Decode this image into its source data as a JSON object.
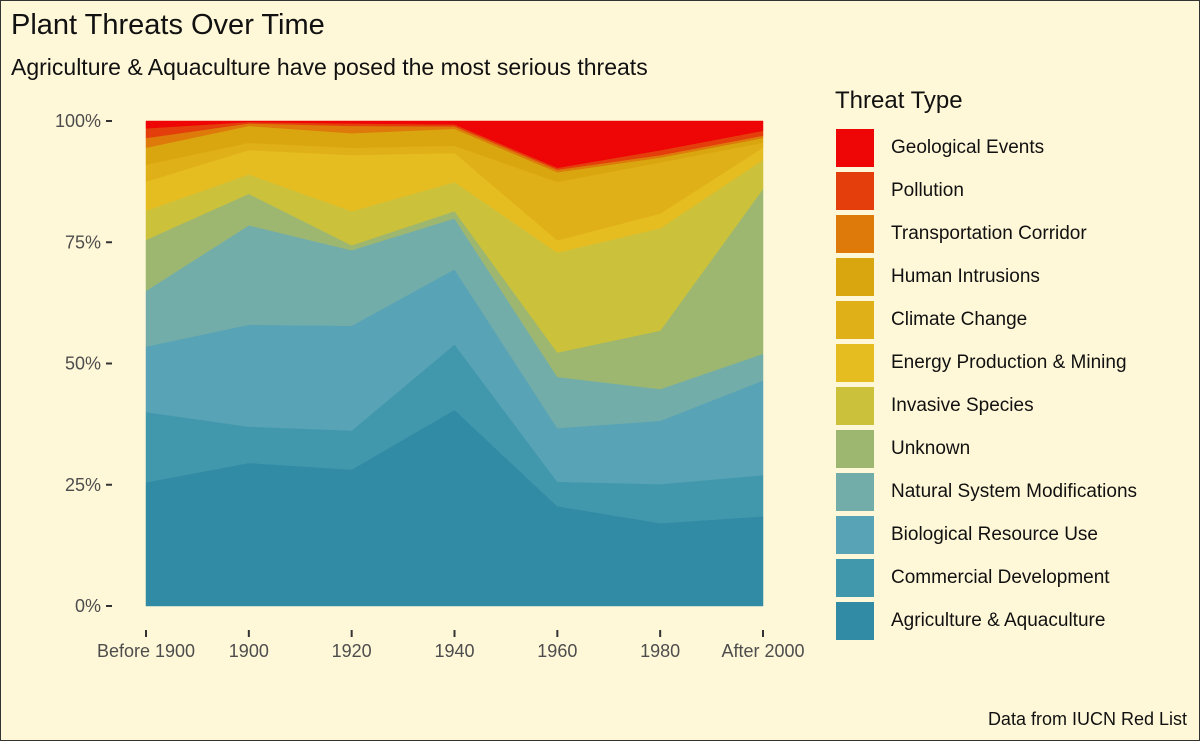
{
  "title": "Plant Threats Over Time",
  "subtitle": "Agriculture & Aquaculture have posed the most serious threats",
  "caption": "Data from IUCN Red List",
  "chart_data": {
    "type": "area",
    "stacked": "percent",
    "title": "Plant Threats Over Time",
    "subtitle": "Agriculture & Aquaculture have posed the most serious threats",
    "xlabel": "",
    "ylabel": "",
    "x": [
      "Before 1900",
      "1900",
      "1920",
      "1940",
      "1960",
      "1980",
      "After 2000"
    ],
    "ylim": [
      0,
      100
    ],
    "y_ticks": [
      "0%",
      "25%",
      "50%",
      "75%",
      "100%"
    ],
    "y_tick_values": [
      0,
      25,
      50,
      75,
      100
    ],
    "grid": false,
    "legend_title": "Threat Type",
    "legend_position": "right",
    "series": [
      {
        "name": "Agriculture & Aquaculture",
        "color": "#328ba5",
        "values": [
          25.5,
          29.5,
          28.0,
          40.5,
          20.5,
          17.0,
          18.5
        ]
      },
      {
        "name": "Commercial Development",
        "color": "#4198ad",
        "values": [
          14.5,
          7.5,
          8.0,
          13.5,
          5.0,
          8.0,
          8.5
        ]
      },
      {
        "name": "Biological Resource Use",
        "color": "#58a3b5",
        "values": [
          13.5,
          21.0,
          21.5,
          15.5,
          11.0,
          13.0,
          19.5
        ]
      },
      {
        "name": "Natural System Modifications",
        "color": "#72adaa",
        "values": [
          11.5,
          20.5,
          15.5,
          10.5,
          10.5,
          6.5,
          5.5
        ]
      },
      {
        "name": "Unknown",
        "color": "#9db770",
        "values": [
          10.5,
          6.5,
          1.0,
          1.5,
          5.0,
          12.0,
          34.0
        ]
      },
      {
        "name": "Invasive Species",
        "color": "#ccc13a",
        "values": [
          6.0,
          4.0,
          7.0,
          6.0,
          20.5,
          21.0,
          6.0
        ]
      },
      {
        "name": "Energy Production & Mining",
        "color": "#e6bd21",
        "values": [
          6.0,
          5.0,
          11.5,
          6.0,
          2.5,
          3.0,
          2.5
        ]
      },
      {
        "name": "Climate Change",
        "color": "#e0b018",
        "values": [
          3.5,
          1.5,
          1.5,
          1.5,
          12.0,
          10.5,
          1.0
        ]
      },
      {
        "name": "Human Intrusions",
        "color": "#daa610",
        "values": [
          3.5,
          3.5,
          3.0,
          3.5,
          2.0,
          1.0,
          1.0
        ]
      },
      {
        "name": "Transportation Corridor",
        "color": "#dd7a0a",
        "values": [
          2.0,
          0.5,
          1.5,
          0.5,
          0.5,
          0.5,
          0.5
        ]
      },
      {
        "name": "Pollution",
        "color": "#e33e0b",
        "values": [
          2.0,
          0.3,
          0.5,
          0.4,
          0.4,
          1.0,
          1.0
        ]
      },
      {
        "name": "Geological Events",
        "color": "#ee0505",
        "values": [
          1.5,
          0.2,
          0.5,
          0.7,
          9.6,
          6.0,
          2.0
        ]
      }
    ]
  }
}
